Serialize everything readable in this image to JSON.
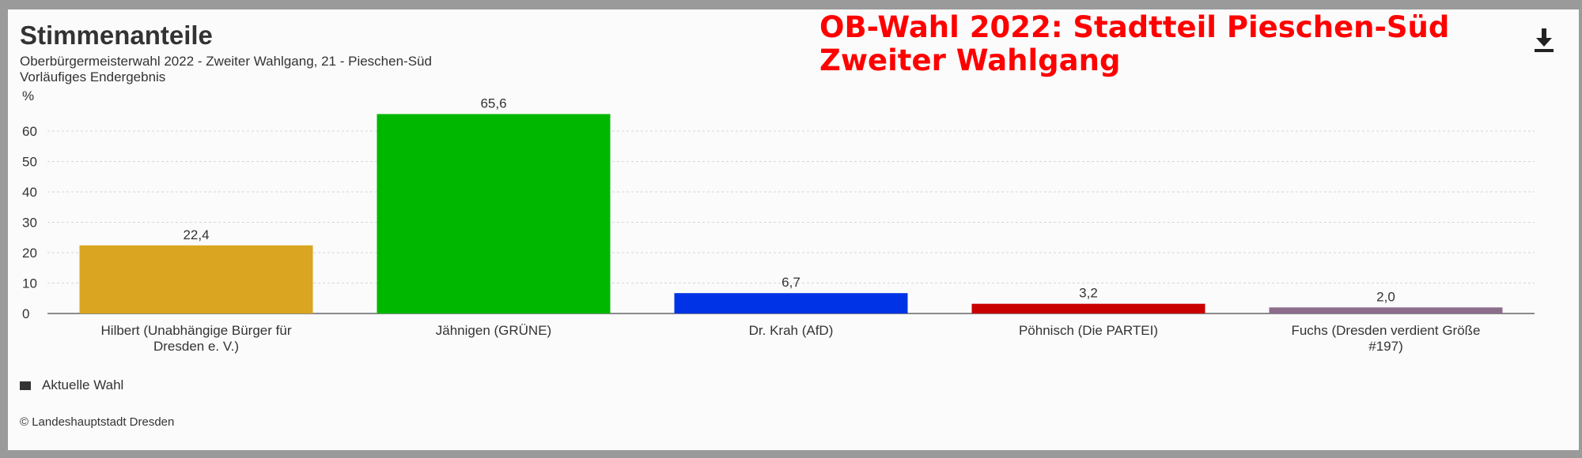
{
  "overlay": {
    "line1": "OB-Wahl 2022: Stadtteil Pieschen-Süd",
    "line2": "Zweiter Wahlgang"
  },
  "download_icon": "download-icon",
  "legend": {
    "label": "Aktuelle Wahl",
    "color": "#333333"
  },
  "credit": "© Landeshauptstadt Dresden",
  "chart_data": {
    "type": "bar",
    "title": "Stimmenanteile",
    "subtitle": "Oberbürgermeisterwahl 2022 - Zweiter Wahlgang, 21 - Pieschen-Süd",
    "subtitle2": "Vorläufiges Endergebnis",
    "ylabel": "%",
    "ylim": [
      0,
      70
    ],
    "yticks": [
      0,
      10,
      20,
      30,
      40,
      50,
      60
    ],
    "grid": true,
    "legend_position": "bottom-left",
    "categories": [
      "Hilbert (Unabhängige Bürger für Dresden e. V.)",
      "Jähnigen (GRÜNE)",
      "Dr. Krah (AfD)",
      "Pöhnisch (Die PARTEI)",
      "Fuchs (Dresden verdient Größe #197)"
    ],
    "category_lines": [
      [
        "Hilbert (Unabhängige Bürger für",
        "Dresden e. V.)"
      ],
      [
        "Jähnigen (GRÜNE)"
      ],
      [
        "Dr. Krah (AfD)"
      ],
      [
        "Pöhnisch (Die PARTEI)"
      ],
      [
        "Fuchs (Dresden verdient Größe",
        "#197)"
      ]
    ],
    "series": [
      {
        "name": "Aktuelle Wahl",
        "values": [
          22.4,
          65.6,
          6.7,
          3.2,
          2.0
        ],
        "labels": [
          "22,4",
          "65,6",
          "6,7",
          "3,2",
          "2,0"
        ]
      }
    ],
    "colors": [
      "#DAA520",
      "#00B700",
      "#0033E6",
      "#C80000",
      "#8C6E8C"
    ]
  }
}
